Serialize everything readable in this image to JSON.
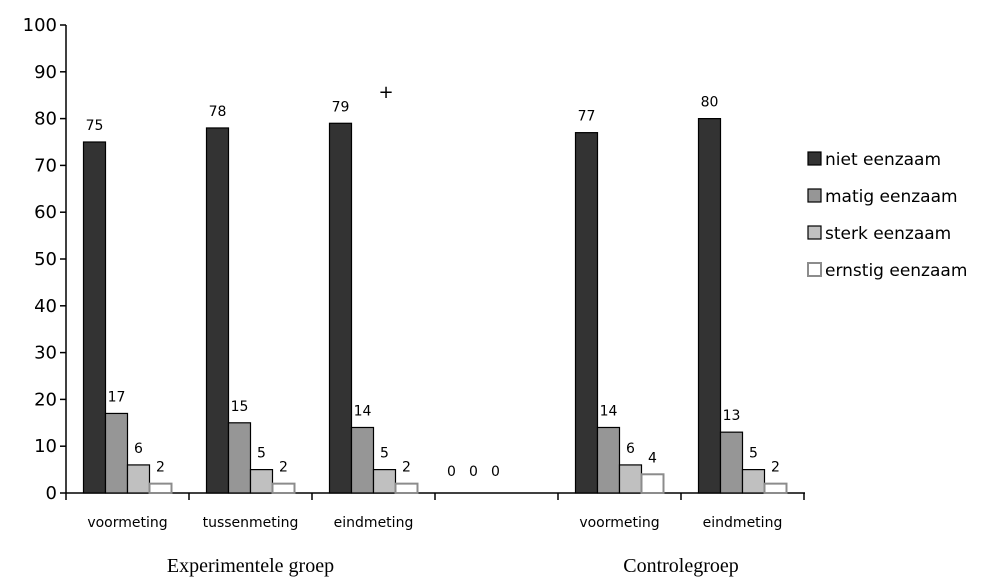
{
  "chart_data": {
    "type": "bar",
    "title": "",
    "xlabel": "",
    "ylabel": "",
    "ylim": [
      0,
      100
    ],
    "yticks": [
      "0",
      "10",
      "20",
      "30",
      "40",
      "50",
      "60",
      "70",
      "80",
      "90",
      "100"
    ],
    "categories": [
      "voormeting",
      "tussenmeting",
      "eindmeting",
      "",
      "voormeting",
      "eindmeting"
    ],
    "groups": [
      {
        "label": "Experimentele groep",
        "categories": [
          "voormeting",
          "tussenmeting",
          "eindmeting"
        ]
      },
      {
        "label": "Controlegroep",
        "categories": [
          "voormeting",
          "eindmeting"
        ]
      }
    ],
    "series": [
      {
        "name": "niet eenzaam",
        "color": "#333333",
        "values": [
          75,
          78,
          79,
          null,
          77,
          80
        ]
      },
      {
        "name": "matig eenzaam",
        "color": "#969696",
        "values": [
          17,
          15,
          14,
          null,
          14,
          13
        ]
      },
      {
        "name": "sterk eenzaam",
        "color": "#c0c0c0",
        "values": [
          6,
          5,
          5,
          null,
          6,
          5
        ]
      },
      {
        "name": "ernstig eenzaam",
        "color": "#ffffff",
        "values": [
          2,
          2,
          2,
          null,
          4,
          2
        ]
      }
    ],
    "empty_category_labels": [
      "0",
      "0",
      "0"
    ],
    "annotations": [
      {
        "text": "+",
        "near": "eindmeting (Experimentele groep)"
      }
    ],
    "legend": "right",
    "grid": false
  }
}
